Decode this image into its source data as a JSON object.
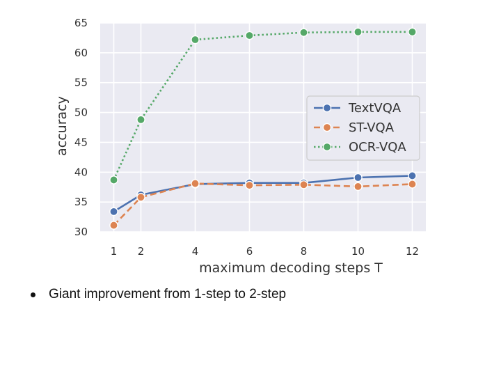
{
  "chart_data": {
    "type": "line",
    "title": "",
    "xlabel": "maximum decoding steps T",
    "ylabel": "accuracy",
    "x": [
      1,
      2,
      4,
      6,
      8,
      10,
      12
    ],
    "xticks": [
      "1",
      "2",
      "4",
      "6",
      "8",
      "10",
      "12"
    ],
    "yticks": [
      "30",
      "35",
      "40",
      "45",
      "50",
      "55",
      "60",
      "65"
    ],
    "xlim": [
      0.5,
      12.5
    ],
    "ylim": [
      30,
      65
    ],
    "grid": true,
    "legend_position": "center-right",
    "series": [
      {
        "name": "TextVQA",
        "color": "#4C72B0",
        "style": "solid",
        "values": [
          33.4,
          36.2,
          38.0,
          38.2,
          38.2,
          39.1,
          39.4
        ]
      },
      {
        "name": "ST-VQA",
        "color": "#DD8452",
        "style": "dashed",
        "values": [
          31.1,
          35.8,
          38.1,
          37.8,
          37.9,
          37.6,
          38.0
        ]
      },
      {
        "name": "OCR-VQA",
        "color": "#55A868",
        "style": "dotted",
        "values": [
          38.7,
          48.8,
          62.2,
          62.9,
          63.4,
          63.5,
          63.5
        ]
      }
    ]
  },
  "slide": {
    "bullet": "Giant improvement from 1-step to 2-step"
  }
}
